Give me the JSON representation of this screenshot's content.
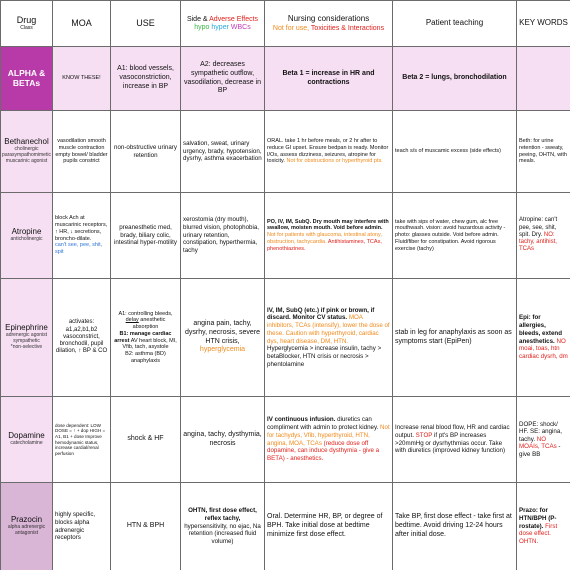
{
  "header": {
    "drug": "Drug",
    "drug_sub": "Class",
    "moa": "MOA",
    "use": "USE",
    "se_1": "Side & ",
    "se_2": "Adverse Effects",
    "se_hypo": "hypo",
    "se_hyper": "hyper",
    "se_wbcs": "WBCs",
    "nursing_1": "Nursing considerations",
    "nursing_2": "Not for use, ",
    "nursing_3": "Toxicities & Interactions",
    "patient": "Patient teaching",
    "keywords": "KEY WORDS"
  },
  "rows": [
    {
      "drug": "ALPHA & BETAs",
      "moa": "KNOW THESE!",
      "use": "A1: blood vessels, vasoconstriction, increase in BP",
      "se": "A2: decreases sympathetic outflow, vasodilation, decrease in BP",
      "nursing": "Beta 1 = increase in HR and contractions",
      "patient": "Beta 2 = lungs, bronchodilation",
      "keywords": ""
    },
    {
      "drug": "Bethanechol",
      "drug_sub": "cholinergic parasympathomimetic muscarinic agonist",
      "moa": "vasodilation smooth muscle contraction empty bowel/ bladder pupils constrict",
      "use": "non-obstructive urinary retention",
      "se": "salvation, sweat, urinary urgency, brady, hypotension, dysrhy, asthma exacerbation",
      "nursing_a": "ORAL. take 1 hr before meals, or 2 hr after to reduce GI upset. Ensure bedpan is ready. Monitor I/Os, assess dizziness, seizures, atropine for toxicity. ",
      "nursing_b": "Not for obstructions or hyperthyroid pts.",
      "patient": "teach s/s of muscamic excess (side effects)",
      "keywords": "Beth: for urine retention - sweaty, peeing, OHTN, with meals."
    },
    {
      "drug": "Atropine",
      "drug_sub": "anticholinergic",
      "moa_a": "block Ach at muscarinic receptors, ↑ HR, ↓ secretions, broncho-dilate.",
      "moa_b": "can't see, pee, shit, spit",
      "use": "preanesthetic med, brady, biliary colic, intestinal hyper-motility",
      "se": "xerostomia (dry mouth), blurred vision, photophobia, urinary retention, constipation, hyperthermia, tachy",
      "nursing_a": "PO, IV, IM, SubQ. Dry mouth may interfere with swallow, moisten mouth. Void before admin. ",
      "nursing_b": "Not for patients with glaucoma, intestinal atony, obstruction, tachycardia.",
      "nursing_c": " Antihistamines, TCAs, phenothiazines.",
      "patient": "take with sips of water, chew gum, alc free mouthwash. vision: avoid hazardous activity - photo: glasses outside. Void before admin. Fluid/fiber for constipation. Avoid rigorous exercise (tachy)",
      "keywords_a": "Atropine: can't pee, see, shit, spit. Dry. ",
      "keywords_b": "NO: tachy, antihist, TCAs"
    },
    {
      "drug": "Epinephrine",
      "drug_sub_a": "adrenergic agonist",
      "drug_sub_b": "sympathetic",
      "drug_sub_c": "*non-selective",
      "moa": "activates: a1,a2,b1,b2 vasoconstrict, bronchodil, pupil dilation, ↑ BP & CO",
      "use_a": "A1: controlling bleeds, ",
      "use_b": "delay",
      "use_c": " anesthetic absorption",
      "use_d": "B1: manage cardiac arrest",
      "use_e": " AV heart block, MI, Vfib, tach, asystole",
      "use_f": "B2: asthma (BD) anaphylaxis",
      "se_a": "angina pain, tachy, dysrhy, necrosis, severe HTN crisis, ",
      "se_b": "hyperglycemia",
      "nursing_a": "IV, IM, SubQ (etc.) if pink or brown, if discard. Monitor CV status. ",
      "nursing_b": "MOA inhibitors, TCAs (intensify), lower the dose of these. Caution with hyperthyroid, cardiac dys, heart disease, DM, HTN.",
      "nursing_c": " Hyperglycemia > increase insulin, tachy > betaBlocker, HTN crisis or necrosis > phentolamine",
      "patient": "stab in leg for anaphylaxis as soon as symptoms start (EpiPen)",
      "keywords_a": "Epi: for allergies, bleeds, extend anesthetics. ",
      "keywords_b": "NO moai, toas, htn cardiac dysrh, dm"
    },
    {
      "drug": "Dopamine",
      "drug_sub": "catecholamine",
      "moa": "dose dependent: LOW DOSE = ↑ + dop HIGH = A1, B1 + dose Improve hemodynamic status, increase cardial/renal perfusion",
      "use": "shock & HF",
      "se": "angina, tachy, dysthymia, necrosis",
      "nursing_a": "IV continuous infusion.",
      "nursing_b": " diuretics can compliment with admin to protect kidney. ",
      "nursing_c": "Not for tachydys, Vfib, hyperthyroid, HTN, angina, MOA, TCAs",
      "nursing_d": " (reduce dose off dopamine, can induce dysthymia - give a BETA) - anesthetics.",
      "patient_a": "Increase renal blood flow, HR and cardiac output. ",
      "patient_b": "STOP",
      "patient_c": " if pt's BP increases >20mmHg or dysrhythmias occur. Take with diuretics (improved kidney function)",
      "keywords_a": "DOPE: shock/ HF. SE: angina, tachy. ",
      "keywords_b": "NO MOAIs, TCAs",
      "keywords_c": " - give BB"
    },
    {
      "drug": "Prazocin",
      "drug_sub": "alpha adrenergic antagonist",
      "moa": "highly specific, blocks alpha adrenergic receptors",
      "use": "HTN & BPH",
      "se_a": "OHTN, first dose effect, reflex tachy,",
      "se_b": " hypersensitivity, no ejac, Na retention (increased fluid volume)",
      "nursing": "Oral. Determine HR, BP, or degree of BPH. Take initial dose at bedtime minimize first dose effect.",
      "patient": "Take BP, first dose effect - take first at bedtime. Avoid driving 12-24 hours after initial dose.",
      "keywords_a": "Prazo: for HTN/BPH (P-rostate). ",
      "keywords_b": "First dose effect. OHTN."
    }
  ]
}
